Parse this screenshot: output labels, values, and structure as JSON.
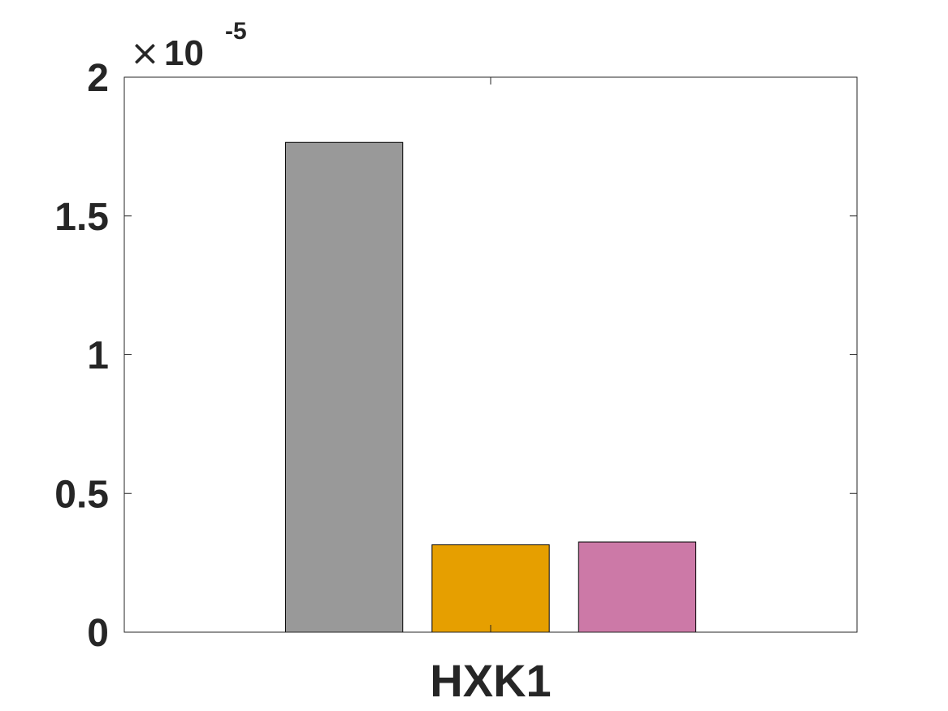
{
  "chart_data": {
    "type": "bar",
    "categories": [
      "HXK1"
    ],
    "series": [
      {
        "values": [
          1.765e-05
        ],
        "color": "#999999"
      },
      {
        "values": [
          3.15e-06
        ],
        "color": "#E69F00"
      },
      {
        "values": [
          3.25e-06
        ],
        "color": "#CC79A7"
      }
    ],
    "title": "",
    "xlabel": "",
    "ylabel": "",
    "ylim": [
      0,
      2e-05
    ],
    "yticks": [
      0,
      0.5,
      1,
      1.5,
      2
    ],
    "ytick_labels": [
      "0",
      "0.5",
      "1",
      "1.5",
      "2"
    ],
    "y_exponent": {
      "times": "×",
      "base": "10",
      "power": "-5",
      "scale": 1e-05
    },
    "grid": false,
    "legend": "none"
  }
}
